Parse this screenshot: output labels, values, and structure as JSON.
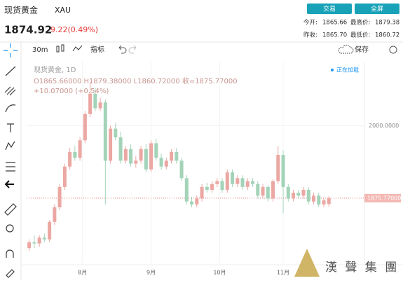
{
  "header": {
    "name": "现货黄金",
    "symbol": "XAU",
    "price": "1874.92",
    "change": "9.22(0.49%)",
    "buttons": [
      "交易",
      "全屏"
    ],
    "stats": [
      {
        "label": "今开:",
        "value": "1865.66"
      },
      {
        "label": "最高价:",
        "value": "1879.38"
      },
      {
        "label": "昨收:",
        "value": "1865.70"
      },
      {
        "label": "最低价:",
        "value": "1860.72"
      }
    ]
  },
  "toolbar": {
    "interval": "30m",
    "indicators": "指标",
    "save": "保存"
  },
  "chart_data": {
    "type": "candlestick",
    "legend_title": "现货黄金, 1D",
    "ohlc_text": "O1865.66000 H1879.38000 L1860.72000 收=1875.77000",
    "change_text": "+10.07000 (+0.54%)",
    "status": "正在加载",
    "watermark": "漢 聲 集 團",
    "x": [
      0,
      1,
      2,
      3,
      4,
      5,
      6,
      7,
      8,
      9,
      10,
      11,
      12,
      13,
      14,
      15,
      16,
      17,
      18,
      19,
      20,
      21,
      22,
      23,
      24,
      25,
      26,
      27,
      28,
      29,
      30,
      31,
      32,
      33,
      34,
      35,
      36,
      37,
      38,
      39,
      40,
      41,
      42,
      43,
      44,
      45,
      46,
      47,
      48,
      49,
      50,
      51,
      52,
      53,
      54,
      55,
      56,
      57,
      58,
      59
    ],
    "open": [
      1790,
      1800,
      1798,
      1808,
      1805,
      1835,
      1860,
      1895,
      1930,
      1955,
      1945,
      1975,
      2020,
      2055,
      2030,
      2040,
      1940,
      1995,
      1980,
      1940,
      1960,
      1935,
      1940,
      1960,
      1925,
      1970,
      1945,
      1930,
      1940,
      1955,
      1940,
      1910,
      1870,
      1865,
      1875,
      1895,
      1890,
      1900,
      1905,
      1890,
      1920,
      1900,
      1910,
      1895,
      1905,
      1900,
      1880,
      1895,
      1875,
      1905,
      1950,
      1895,
      1875,
      1885,
      1880,
      1890,
      1870,
      1880,
      1865,
      1865.66
    ],
    "high": [
      1805,
      1812,
      1812,
      1815,
      1838,
      1865,
      1900,
      1935,
      1962,
      1965,
      1980,
      2025,
      2075,
      2065,
      2048,
      2045,
      2000,
      2005,
      1990,
      1965,
      1968,
      1948,
      1965,
      1968,
      1975,
      1978,
      1952,
      1945,
      1960,
      1962,
      1945,
      1915,
      1878,
      1880,
      1900,
      1902,
      1905,
      1910,
      1910,
      1925,
      1925,
      1915,
      1915,
      1910,
      1910,
      1905,
      1900,
      1898,
      1908,
      1965,
      1958,
      1900,
      1890,
      1890,
      1895,
      1895,
      1885,
      1885,
      1875,
      1879.38
    ],
    "low": [
      1785,
      1790,
      1792,
      1800,
      1800,
      1830,
      1855,
      1890,
      1925,
      1940,
      1940,
      1970,
      2015,
      2025,
      2025,
      1865,
      1935,
      1975,
      1935,
      1935,
      1930,
      1928,
      1935,
      1920,
      1920,
      1940,
      1925,
      1925,
      1935,
      1935,
      1905,
      1865,
      1860,
      1860,
      1870,
      1885,
      1885,
      1895,
      1885,
      1885,
      1895,
      1895,
      1890,
      1890,
      1895,
      1875,
      1875,
      1870,
      1870,
      1900,
      1850,
      1870,
      1870,
      1875,
      1875,
      1865,
      1865,
      1860,
      1860,
      1860.72
    ],
    "close": [
      1800,
      1798,
      1808,
      1805,
      1835,
      1860,
      1895,
      1930,
      1955,
      1945,
      1975,
      2020,
      2055,
      2030,
      2040,
      1940,
      1995,
      1980,
      1940,
      1960,
      1935,
      1940,
      1960,
      1925,
      1970,
      1945,
      1930,
      1940,
      1955,
      1940,
      1910,
      1870,
      1865,
      1875,
      1895,
      1890,
      1900,
      1905,
      1890,
      1920,
      1900,
      1910,
      1895,
      1905,
      1900,
      1880,
      1895,
      1875,
      1905,
      1950,
      1895,
      1875,
      1885,
      1880,
      1890,
      1870,
      1880,
      1865,
      1872,
      1875.77
    ],
    "xlim": [
      -0.5,
      66
    ],
    "xticks": [
      {
        "value": 10.5,
        "label": "8月"
      },
      {
        "value": 24,
        "label": "9月"
      },
      {
        "value": 37.5,
        "label": "10月"
      },
      {
        "value": 50,
        "label": "11月"
      }
    ],
    "ylim": [
      1765,
      2110
    ],
    "yticks": [
      {
        "value": 2000,
        "label": "2000.0000"
      }
    ],
    "last_price": {
      "value": 1875.77,
      "label": "1875.77000"
    },
    "up_color": "#eba7a2",
    "down_color": "#a3d3b8"
  }
}
